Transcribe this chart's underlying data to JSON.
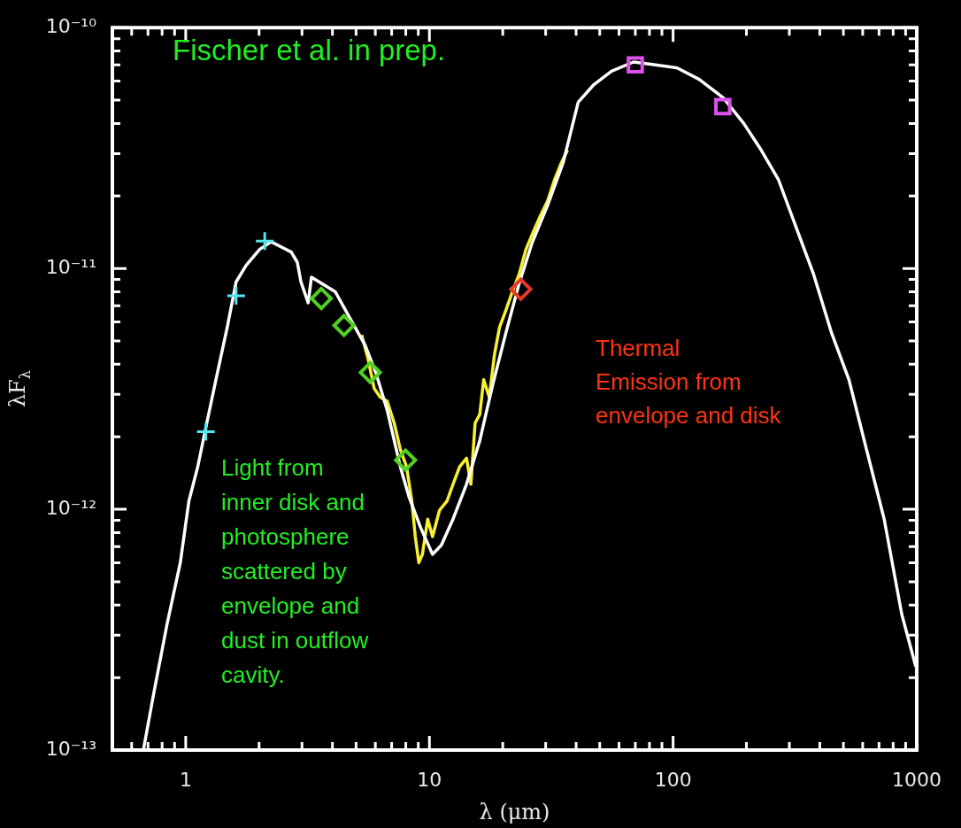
{
  "chart_data": {
    "type": "scatter",
    "xlabel": "λ (μm)",
    "ylabel": "λF$_{λ}$",
    "log": "xy",
    "grid": false,
    "xlim": [
      0.5,
      1000
    ],
    "ylim": [
      1e-13,
      1e-10
    ],
    "xticks": [
      {
        "value": 0.6,
        "label": null
      },
      {
        "value": 0.7,
        "label": null
      },
      {
        "value": 0.8,
        "label": null
      },
      {
        "value": 0.9,
        "label": null
      },
      1,
      {
        "value": 2,
        "label": null
      },
      {
        "value": 3,
        "label": null
      },
      {
        "value": 4,
        "label": null
      },
      {
        "value": 5,
        "label": null
      },
      {
        "value": 6,
        "label": null
      },
      {
        "value": 7,
        "label": null
      },
      {
        "value": 8,
        "label": null
      },
      {
        "value": 9,
        "label": null
      },
      10,
      {
        "value": 20,
        "label": null
      },
      {
        "value": 30,
        "label": null
      },
      {
        "value": 40,
        "label": null
      },
      {
        "value": 50,
        "label": null
      },
      {
        "value": 60,
        "label": null
      },
      {
        "value": 70,
        "label": null
      },
      {
        "value": 80,
        "label": null
      },
      {
        "value": 90,
        "label": null
      },
      100,
      {
        "value": 200,
        "label": null
      },
      {
        "value": 300,
        "label": null
      },
      {
        "value": 400,
        "label": null
      },
      {
        "value": 500,
        "label": null
      },
      {
        "value": 600,
        "label": null
      },
      {
        "value": 700,
        "label": null
      },
      {
        "value": 800,
        "label": null
      },
      {
        "value": 900,
        "label": null
      },
      1000
    ],
    "yticks": [
      {
        "value": 1e-13,
        "label": "10⁻¹³"
      },
      {
        "value": 2e-13,
        "label": null
      },
      {
        "value": 3e-13,
        "label": null
      },
      {
        "value": 4e-13,
        "label": null
      },
      {
        "value": 5e-13,
        "label": null
      },
      {
        "value": 6e-13,
        "label": null
      },
      {
        "value": 7e-13,
        "label": null
      },
      {
        "value": 8e-13,
        "label": null
      },
      {
        "value": 9e-13,
        "label": null
      },
      {
        "value": 1e-12,
        "label": "10⁻¹²"
      },
      {
        "value": 2e-12,
        "label": null
      },
      {
        "value": 3e-12,
        "label": null
      },
      {
        "value": 4e-12,
        "label": null
      },
      {
        "value": 5e-12,
        "label": null
      },
      {
        "value": 6e-12,
        "label": null
      },
      {
        "value": 7e-12,
        "label": null
      },
      {
        "value": 8e-12,
        "label": null
      },
      {
        "value": 9e-12,
        "label": null
      },
      {
        "value": 1e-11,
        "label": "10⁻¹¹"
      },
      {
        "value": 2e-11,
        "label": null
      },
      {
        "value": 3e-11,
        "label": null
      },
      {
        "value": 4e-11,
        "label": null
      },
      {
        "value": 5e-11,
        "label": null
      },
      {
        "value": 6e-11,
        "label": null
      },
      {
        "value": 7e-11,
        "label": null
      },
      {
        "value": 8e-11,
        "label": null
      },
      {
        "value": 9e-11,
        "label": null
      },
      {
        "value": 1e-10,
        "label": "10⁻¹⁰"
      }
    ],
    "series": [
      {
        "type": "line",
        "marker": "none",
        "color": "#f8f030",
        "x": [
          5.27,
          5.59,
          5.93,
          6.28,
          6.71,
          7.17,
          7.6,
          8.06,
          8.47,
          8.75,
          9.05,
          9.36,
          9.84,
          10.3,
          11.0,
          11.8,
          12.5,
          13.3,
          14.2,
          14.8,
          15.4,
          16.1,
          16.7,
          17.6,
          18.5,
          19.4,
          20.6,
          21.8,
          23.3,
          24.9,
          26.7,
          28.5,
          30.5,
          32.6,
          34.8,
          36.9
        ],
        "values": [
          5.3e-12,
          4.25e-12,
          3.18e-12,
          2.92e-12,
          2.81e-12,
          2.28e-12,
          1.77e-12,
          1.5e-12,
          1.08e-12,
          7.7e-13,
          6e-13,
          6.5e-13,
          9.1e-13,
          7.7e-13,
          9.9e-13,
          1.08e-12,
          1.27e-12,
          1.5e-12,
          1.63e-12,
          1.27e-12,
          2.28e-12,
          2.48e-12,
          3.45e-12,
          2.92e-12,
          4.4e-12,
          5.7e-12,
          6.7e-12,
          7.9e-12,
          9.4e-12,
          1.2e-11,
          1.42e-11,
          1.65e-11,
          1.9e-11,
          2.33e-11,
          2.75e-11,
          3.1e-11
        ]
      },
      {
        "type": "line",
        "marker": "none",
        "color": "#ffffff",
        "x": [
          0.67,
          0.74,
          0.84,
          0.95,
          1.03,
          1.12,
          1.22,
          1.33,
          1.48,
          1.61,
          1.77,
          2.01,
          2.24,
          2.71,
          2.87,
          2.97,
          3.18,
          3.28,
          3.72,
          4.11,
          4.81,
          5.45,
          6.02,
          6.71,
          7.6,
          8.26,
          9.2,
          10.3,
          11.2,
          12.5,
          14.2,
          16.1,
          18.2,
          20.6,
          23.3,
          26.4,
          30.5,
          35.4,
          40.8,
          47.3,
          55.9,
          68.8,
          84.7,
          104,
          128,
          161,
          195,
          230,
          271,
          320,
          378,
          447,
          527,
          622,
          735,
          868,
          991
        ],
        "values": [
          1e-13,
          1.73e-13,
          3.37e-13,
          6e-13,
          1.08e-12,
          1.5e-12,
          2.28e-12,
          3.45e-12,
          5.7e-12,
          8.8e-12,
          1.03e-11,
          1.2e-11,
          1.29e-11,
          1.17e-11,
          1.06e-11,
          8.8e-12,
          7.2e-12,
          9.2e-12,
          8.5e-12,
          8e-12,
          6e-12,
          4.8e-12,
          3.7e-12,
          2.58e-12,
          1.5e-12,
          1.12e-12,
          8.4e-13,
          6.5e-13,
          7.1e-13,
          9.1e-13,
          1.27e-12,
          1.93e-12,
          3.3e-12,
          5.4e-12,
          8.6e-12,
          1.28e-11,
          1.82e-11,
          2.75e-11,
          4.9e-11,
          5.8e-11,
          6.6e-11,
          7.2e-11,
          7e-11,
          6.8e-11,
          6.1e-11,
          5.1e-11,
          4e-11,
          3.1e-11,
          2.33e-11,
          1.48e-11,
          9.4e-12,
          5.4e-12,
          3.45e-12,
          1.77e-12,
          9.1e-13,
          3.66e-13,
          2.22e-13
        ]
      },
      {
        "marker": "cross",
        "color": "#55e6f0",
        "x": [
          1.21,
          1.61,
          2.11
        ],
        "values": [
          2.1e-12,
          7.7e-12,
          1.3e-11
        ]
      },
      {
        "marker": "diamond",
        "color": "#50d020",
        "x": [
          3.6,
          4.46,
          5.72,
          7.98
        ],
        "values": [
          7.5e-12,
          5.8e-12,
          3.7e-12,
          1.6e-12
        ]
      },
      {
        "marker": "diamond",
        "color": "#e83828",
        "x": [
          23.7
        ],
        "values": [
          8.2e-12
        ]
      },
      {
        "marker": "square",
        "color": "#e050f0",
        "x": [
          70,
          160
        ],
        "values": [
          7e-11,
          4.7e-11
        ]
      }
    ],
    "annotations": [
      "Fischer et al. in prep.",
      "Light from\ninner disk and\nphotosphere\nscattered by\nenvelope and\ndust in outflow\ncavity.",
      "Thermal\nEmission from\nenvelope and disk"
    ]
  }
}
